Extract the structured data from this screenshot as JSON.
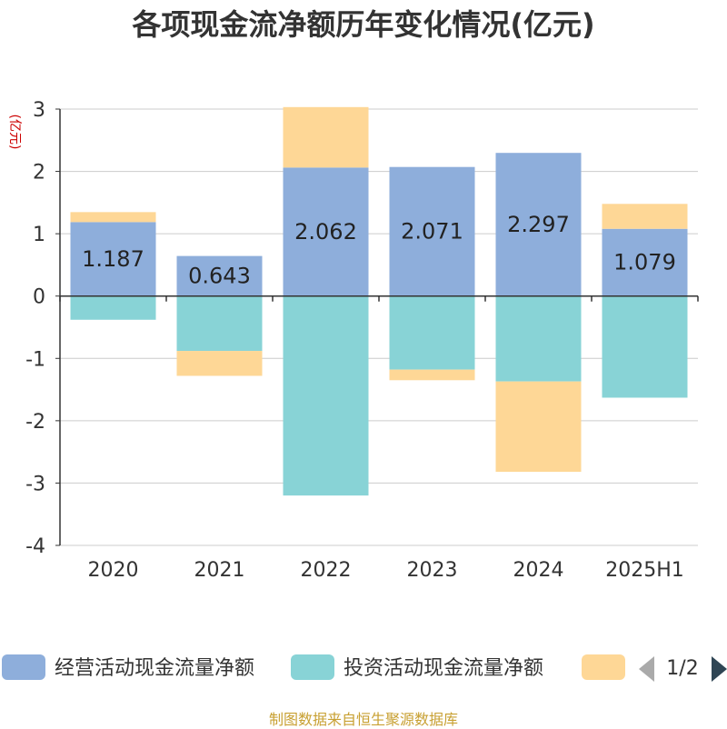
{
  "title": "各项现金流净额历年变化情况(亿元)",
  "source": "制图数据来自恒生聚源数据库",
  "colors": {
    "operating": "#8eaedb",
    "investing": "#88d3d6",
    "financing": "#fed796",
    "axis": "#333333",
    "grid": "#cccccc",
    "ylabel": "#cc0000",
    "source": "#c8a032",
    "pager_active": "#2f4554",
    "pager_inactive": "#aaaaaa"
  },
  "chart_data": {
    "type": "bar",
    "stacked": true,
    "ylabel": "(亿元)",
    "ylim": [
      -4,
      3
    ],
    "yticks": [
      -4,
      -3,
      -2,
      -1,
      0,
      1,
      2,
      3
    ],
    "grid": true,
    "categories": [
      "2020",
      "2021",
      "2022",
      "2023",
      "2024",
      "2025H1"
    ],
    "series": [
      {
        "name": "经营活动现金流量净额",
        "key": "operating",
        "values": [
          1.187,
          0.643,
          2.062,
          2.071,
          2.297,
          1.079
        ],
        "labels": [
          "1.187",
          "0.643",
          "2.062",
          "2.071",
          "2.297",
          "1.079"
        ]
      },
      {
        "name": "投资活动现金流量净额",
        "key": "investing",
        "values": [
          -0.38,
          -0.88,
          -3.2,
          -1.18,
          -1.37,
          -1.63
        ]
      },
      {
        "name": "",
        "key": "financing",
        "values": [
          0.16,
          -0.4,
          0.97,
          -0.17,
          -1.45,
          0.4
        ]
      }
    ],
    "legend": {
      "position": "bottom",
      "page": "1/2"
    }
  }
}
